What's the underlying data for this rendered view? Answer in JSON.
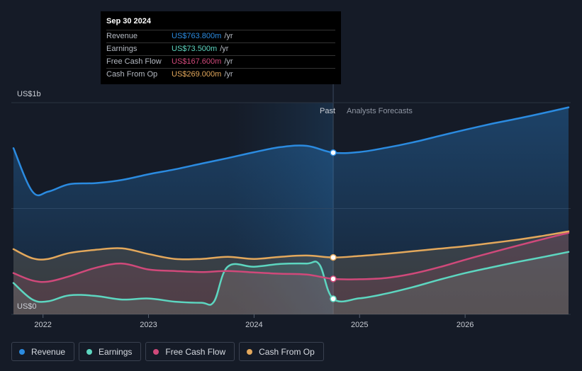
{
  "chart_data": {
    "type": "line",
    "unit_prefix": "US$",
    "y_top_label": "US$1b",
    "y_bottom_label": "US$0",
    "ylim": [
      0,
      1000
    ],
    "x_ticks": [
      "2022",
      "2023",
      "2024",
      "2025",
      "2026"
    ],
    "past_label": "Past",
    "forecast_label": "Analysts Forecasts",
    "divider_date": 2024.75,
    "highlight_start": 2023.75,
    "x_range": [
      2021.7,
      2027.0
    ],
    "series": [
      {
        "name": "Revenue",
        "color": "#2b8be0",
        "points": [
          [
            2021.72,
            785
          ],
          [
            2021.9,
            580
          ],
          [
            2022.05,
            580
          ],
          [
            2022.25,
            615
          ],
          [
            2022.5,
            620
          ],
          [
            2022.75,
            635
          ],
          [
            2023.0,
            662
          ],
          [
            2023.25,
            685
          ],
          [
            2023.5,
            712
          ],
          [
            2023.75,
            738
          ],
          [
            2024.0,
            766
          ],
          [
            2024.25,
            790
          ],
          [
            2024.5,
            796
          ],
          [
            2024.75,
            764
          ],
          [
            2025.0,
            767
          ],
          [
            2025.25,
            787
          ],
          [
            2025.5,
            812
          ],
          [
            2025.75,
            842
          ],
          [
            2026.0,
            872
          ],
          [
            2026.25,
            900
          ],
          [
            2026.5,
            925
          ],
          [
            2026.75,
            952
          ],
          [
            2026.98,
            978
          ]
        ]
      },
      {
        "name": "Earnings",
        "color": "#5dd6c0",
        "points": [
          [
            2021.72,
            148
          ],
          [
            2021.9,
            70
          ],
          [
            2022.05,
            62
          ],
          [
            2022.25,
            90
          ],
          [
            2022.5,
            87
          ],
          [
            2022.75,
            70
          ],
          [
            2023.0,
            75
          ],
          [
            2023.25,
            60
          ],
          [
            2023.5,
            55
          ],
          [
            2023.62,
            60
          ],
          [
            2023.75,
            225
          ],
          [
            2024.0,
            225
          ],
          [
            2024.25,
            238
          ],
          [
            2024.5,
            240
          ],
          [
            2024.62,
            235
          ],
          [
            2024.75,
            73.5
          ],
          [
            2025.0,
            76
          ],
          [
            2025.25,
            98
          ],
          [
            2025.5,
            128
          ],
          [
            2025.75,
            163
          ],
          [
            2026.0,
            195
          ],
          [
            2026.25,
            222
          ],
          [
            2026.5,
            248
          ],
          [
            2026.75,
            272
          ],
          [
            2026.98,
            295
          ]
        ]
      },
      {
        "name": "Free Cash Flow",
        "color": "#d0497a",
        "points": [
          [
            2021.72,
            195
          ],
          [
            2021.9,
            160
          ],
          [
            2022.05,
            155
          ],
          [
            2022.25,
            180
          ],
          [
            2022.5,
            220
          ],
          [
            2022.75,
            240
          ],
          [
            2023.0,
            212
          ],
          [
            2023.25,
            205
          ],
          [
            2023.5,
            200
          ],
          [
            2023.75,
            205
          ],
          [
            2024.0,
            198
          ],
          [
            2024.25,
            192
          ],
          [
            2024.5,
            188
          ],
          [
            2024.75,
            167.6
          ],
          [
            2025.0,
            166
          ],
          [
            2025.25,
            172
          ],
          [
            2025.5,
            192
          ],
          [
            2025.75,
            222
          ],
          [
            2026.0,
            258
          ],
          [
            2026.25,
            292
          ],
          [
            2026.5,
            325
          ],
          [
            2026.75,
            357
          ],
          [
            2026.98,
            385
          ]
        ]
      },
      {
        "name": "Cash From Op",
        "color": "#e3a85c",
        "points": [
          [
            2021.72,
            308
          ],
          [
            2021.9,
            265
          ],
          [
            2022.05,
            262
          ],
          [
            2022.25,
            290
          ],
          [
            2022.5,
            305
          ],
          [
            2022.75,
            312
          ],
          [
            2023.0,
            285
          ],
          [
            2023.25,
            262
          ],
          [
            2023.5,
            262
          ],
          [
            2023.75,
            272
          ],
          [
            2024.0,
            262
          ],
          [
            2024.25,
            272
          ],
          [
            2024.5,
            278
          ],
          [
            2024.75,
            269
          ],
          [
            2025.0,
            276
          ],
          [
            2025.25,
            286
          ],
          [
            2025.5,
            298
          ],
          [
            2025.75,
            310
          ],
          [
            2026.0,
            322
          ],
          [
            2026.25,
            337
          ],
          [
            2026.5,
            353
          ],
          [
            2026.75,
            372
          ],
          [
            2026.98,
            392
          ]
        ]
      }
    ]
  },
  "tooltip": {
    "date": "Sep 30 2024",
    "rows": [
      {
        "label": "Revenue",
        "value": "US$763.800m",
        "unit": "/yr",
        "color": "#2b8be0"
      },
      {
        "label": "Earnings",
        "value": "US$73.500m",
        "unit": "/yr",
        "color": "#5dd6c0"
      },
      {
        "label": "Free Cash Flow",
        "value": "US$167.600m",
        "unit": "/yr",
        "color": "#d0497a"
      },
      {
        "label": "Cash From Op",
        "value": "US$269.000m",
        "unit": "/yr",
        "color": "#e3a85c"
      }
    ]
  },
  "legend": [
    {
      "label": "Revenue",
      "color": "#2b8be0"
    },
    {
      "label": "Earnings",
      "color": "#5dd6c0"
    },
    {
      "label": "Free Cash Flow",
      "color": "#d0497a"
    },
    {
      "label": "Cash From Op",
      "color": "#e3a85c"
    }
  ]
}
